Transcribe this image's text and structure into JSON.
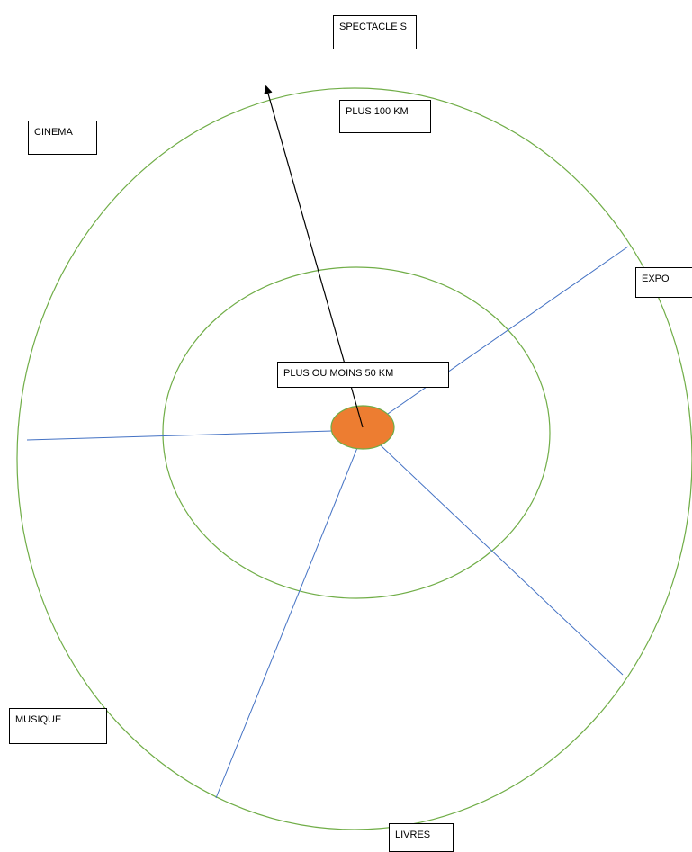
{
  "labels": {
    "spectacle": "SPECTACLE S",
    "plus100": "PLUS 100 KM",
    "cinema": "CINEMA",
    "expo": "EXPO",
    "plus50": "PLUS OU MOINS 50 KM",
    "musique": "MUSIQUE",
    "livres": "LIVRES"
  },
  "colors": {
    "ring": "#70ad47",
    "spoke": "#4472c4",
    "center_fill": "#ed7d31",
    "arrow": "#000000"
  }
}
